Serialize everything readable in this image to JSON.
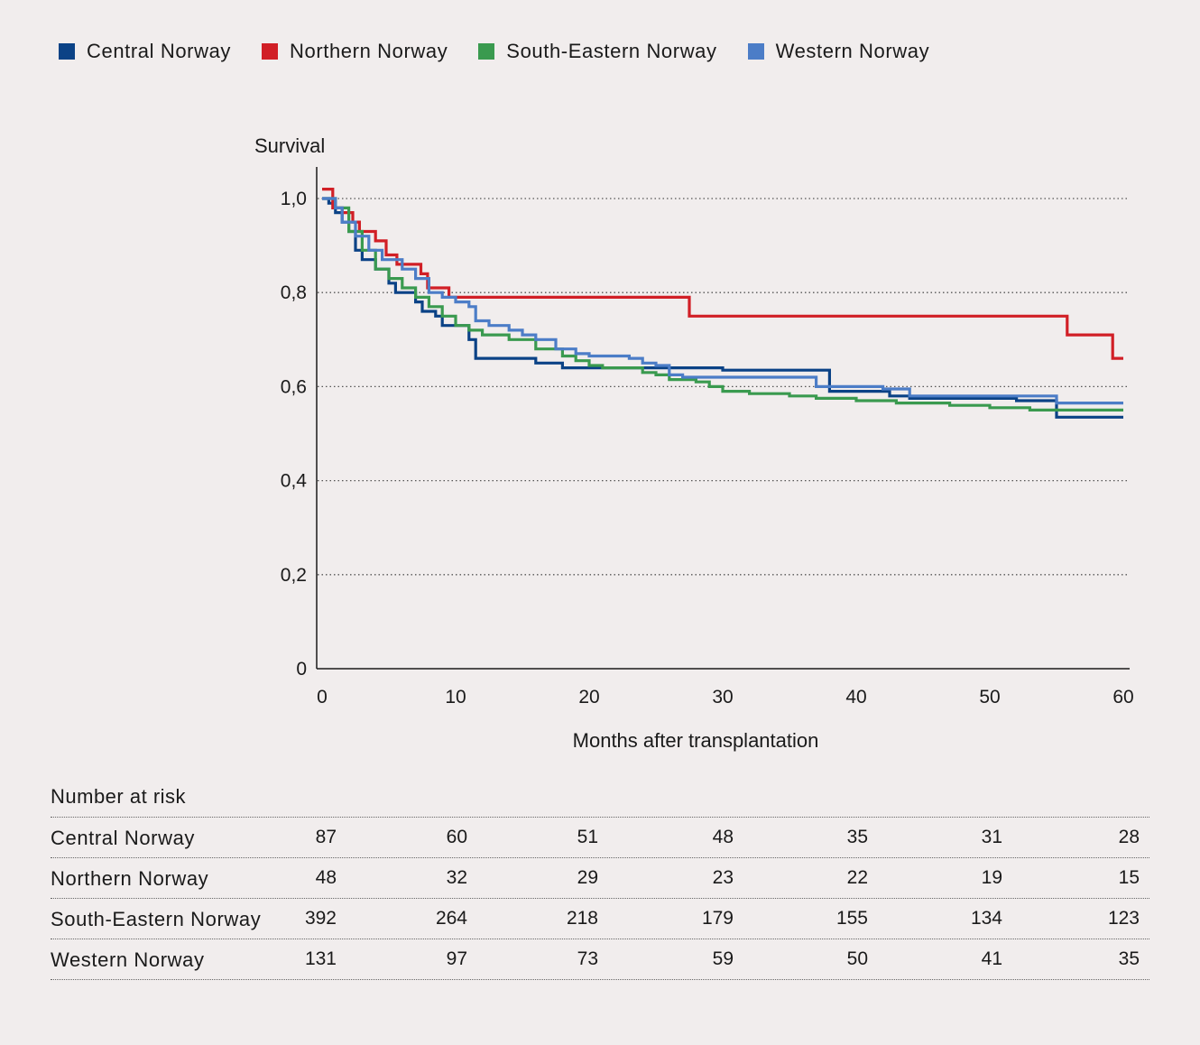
{
  "legend": [
    {
      "label": "Central Norway",
      "color": "#0b4286"
    },
    {
      "label": "Northern Norway",
      "color": "#d11f26"
    },
    {
      "label": "South-Eastern Norway",
      "color": "#3a9a4f"
    },
    {
      "label": "Western Norway",
      "color": "#4c7dc7"
    }
  ],
  "chart_data": {
    "type": "line",
    "step": true,
    "ylabel": "Survival",
    "xlabel": "Months after transplantation",
    "xlim": [
      0,
      60
    ],
    "ylim": [
      0,
      1.0
    ],
    "x_ticks": [
      "0",
      "10",
      "20",
      "30",
      "40",
      "50",
      "60"
    ],
    "y_ticks": [
      "0",
      "0,2",
      "0,4",
      "0,6",
      "0,8",
      "1,0"
    ],
    "grid": "horizontal dotted",
    "series": [
      {
        "name": "Central Norway",
        "color": "#0b4286",
        "points": [
          [
            0,
            1.0
          ],
          [
            0.5,
            0.99
          ],
          [
            1,
            0.97
          ],
          [
            1.5,
            0.95
          ],
          [
            2,
            0.93
          ],
          [
            2.5,
            0.89
          ],
          [
            3,
            0.87
          ],
          [
            4,
            0.85
          ],
          [
            5,
            0.82
          ],
          [
            5.5,
            0.8
          ],
          [
            7,
            0.78
          ],
          [
            7.5,
            0.76
          ],
          [
            8.5,
            0.75
          ],
          [
            9,
            0.73
          ],
          [
            10,
            0.73
          ],
          [
            11,
            0.7
          ],
          [
            11.5,
            0.66
          ],
          [
            16,
            0.65
          ],
          [
            18,
            0.64
          ],
          [
            24,
            0.64
          ],
          [
            30,
            0.635
          ],
          [
            38,
            0.62
          ],
          [
            38,
            0.59
          ],
          [
            42.5,
            0.58
          ],
          [
            44,
            0.575
          ],
          [
            52,
            0.57
          ],
          [
            55,
            0.535
          ],
          [
            60,
            0.535
          ]
        ]
      },
      {
        "name": "Northern Norway",
        "color": "#d11f26",
        "points": [
          [
            0,
            1.02
          ],
          [
            0.8,
            0.98
          ],
          [
            1.5,
            0.97
          ],
          [
            2.3,
            0.95
          ],
          [
            2.8,
            0.93
          ],
          [
            4,
            0.91
          ],
          [
            4.8,
            0.88
          ],
          [
            5.6,
            0.86
          ],
          [
            7.4,
            0.84
          ],
          [
            7.9,
            0.81
          ],
          [
            9.5,
            0.79
          ],
          [
            27.5,
            0.79
          ],
          [
            27.5,
            0.75
          ],
          [
            55.8,
            0.75
          ],
          [
            55.8,
            0.71
          ],
          [
            59.2,
            0.71
          ],
          [
            59.2,
            0.66
          ],
          [
            60,
            0.66
          ]
        ]
      },
      {
        "name": "South-Eastern Norway",
        "color": "#3a9a4f",
        "points": [
          [
            0,
            1.0
          ],
          [
            1,
            0.98
          ],
          [
            2,
            0.93
          ],
          [
            3,
            0.89
          ],
          [
            4,
            0.85
          ],
          [
            5,
            0.83
          ],
          [
            6,
            0.81
          ],
          [
            7,
            0.79
          ],
          [
            8,
            0.77
          ],
          [
            9,
            0.75
          ],
          [
            10,
            0.73
          ],
          [
            11,
            0.72
          ],
          [
            12,
            0.71
          ],
          [
            14,
            0.7
          ],
          [
            16,
            0.68
          ],
          [
            18,
            0.665
          ],
          [
            19,
            0.655
          ],
          [
            20,
            0.645
          ],
          [
            21,
            0.64
          ],
          [
            24,
            0.63
          ],
          [
            25,
            0.625
          ],
          [
            26,
            0.615
          ],
          [
            28,
            0.61
          ],
          [
            29,
            0.6
          ],
          [
            30,
            0.59
          ],
          [
            32,
            0.585
          ],
          [
            35,
            0.58
          ],
          [
            37,
            0.575
          ],
          [
            40,
            0.57
          ],
          [
            43,
            0.565
          ],
          [
            47,
            0.56
          ],
          [
            50,
            0.555
          ],
          [
            53,
            0.55
          ],
          [
            60,
            0.55
          ]
        ]
      },
      {
        "name": "Western Norway",
        "color": "#4c7dc7",
        "points": [
          [
            0,
            1.0
          ],
          [
            1,
            0.98
          ],
          [
            1.5,
            0.95
          ],
          [
            2.5,
            0.92
          ],
          [
            3.5,
            0.89
          ],
          [
            4.5,
            0.87
          ],
          [
            6,
            0.85
          ],
          [
            7,
            0.83
          ],
          [
            8,
            0.8
          ],
          [
            9,
            0.79
          ],
          [
            10,
            0.78
          ],
          [
            11,
            0.77
          ],
          [
            11.5,
            0.74
          ],
          [
            12.5,
            0.73
          ],
          [
            14,
            0.72
          ],
          [
            15,
            0.71
          ],
          [
            16,
            0.7
          ],
          [
            17.5,
            0.68
          ],
          [
            19,
            0.67
          ],
          [
            20,
            0.665
          ],
          [
            23,
            0.66
          ],
          [
            24,
            0.65
          ],
          [
            25,
            0.645
          ],
          [
            26,
            0.625
          ],
          [
            27,
            0.62
          ],
          [
            37,
            0.6
          ],
          [
            42,
            0.595
          ],
          [
            44,
            0.58
          ],
          [
            50,
            0.58
          ],
          [
            55,
            0.565
          ],
          [
            60,
            0.565
          ]
        ]
      }
    ]
  },
  "risk_table": {
    "title": "Number at risk",
    "rows": [
      {
        "name": "Central Norway",
        "values": [
          "87",
          "60",
          "51",
          "48",
          "35",
          "31",
          "28"
        ]
      },
      {
        "name": "Northern Norway",
        "values": [
          "48",
          "32",
          "29",
          "23",
          "22",
          "19",
          "15"
        ]
      },
      {
        "name": "South-Eastern Norway",
        "values": [
          "392",
          "264",
          "218",
          "179",
          "155",
          "134",
          "123"
        ]
      },
      {
        "name": "Western Norway",
        "values": [
          "131",
          "97",
          "73",
          "59",
          "50",
          "41",
          "35"
        ]
      }
    ]
  }
}
